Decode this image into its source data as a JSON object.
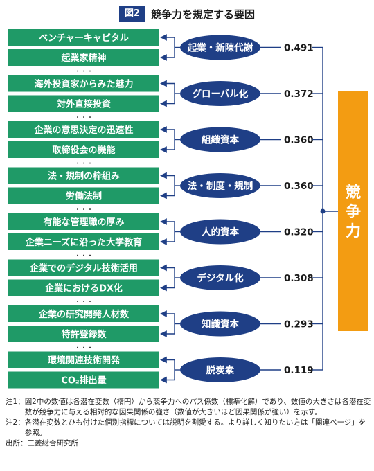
{
  "header": {
    "badge": "図2",
    "title": "競争力を規定する要因"
  },
  "target": {
    "label": "競争力",
    "color": "#f39c12"
  },
  "colors": {
    "indicator_fill": "#1f9a67",
    "factor_fill": "#1f3f86",
    "line": "#1f3f86",
    "ellipsis": "#222222"
  },
  "ellipsis": "・・・",
  "groups": [
    {
      "factor": "起業・新陳代謝",
      "coef": "0.491",
      "indicators": [
        "ベンチャーキャピタル",
        "起業家精神"
      ]
    },
    {
      "factor": "グローバル化",
      "coef": "0.372",
      "indicators": [
        "海外投資家からみた魅力",
        "対外直接投資"
      ]
    },
    {
      "factor": "組織資本",
      "coef": "0.360",
      "indicators": [
        "企業の意思決定の迅速性",
        "取締役会の機能"
      ]
    },
    {
      "factor": "法・制度・規制",
      "coef": "0.360",
      "indicators": [
        "法・規制の枠組み",
        "労働法制"
      ]
    },
    {
      "factor": "人的資本",
      "coef": "0.320",
      "indicators": [
        "有能な管理職の厚み",
        "企業ニーズに沿った大学教育"
      ]
    },
    {
      "factor": "デジタル化",
      "coef": "0.308",
      "indicators": [
        "企業でのデジタル技術活用",
        "企業におけるDX化"
      ]
    },
    {
      "factor": "知識資本",
      "coef": "0.293",
      "indicators": [
        "企業の研究開発人材数",
        "特許登録数"
      ]
    },
    {
      "factor": "脱炭素",
      "coef": "0.119",
      "indicators": [
        "環境関連技術開発",
        "CO₂排出量"
      ]
    }
  ],
  "notes": [
    {
      "label": "注1：",
      "text": "図2中の数値は各潜在変数（楕円）から競争力へのパス係数（標準化解）であり、数値の大きさは各潜在変数が競争力に与える相対的な因果関係の強さ（数値が大きいほど因果関係が強い）を示す。"
    },
    {
      "label": "注2：",
      "text": "各潜在変数とひも付けた個別指標については説明を割愛する。より詳しく知りたい方は「関連ページ」を参照。"
    },
    {
      "label": "出所：",
      "text": "三菱総合研究所"
    }
  ]
}
